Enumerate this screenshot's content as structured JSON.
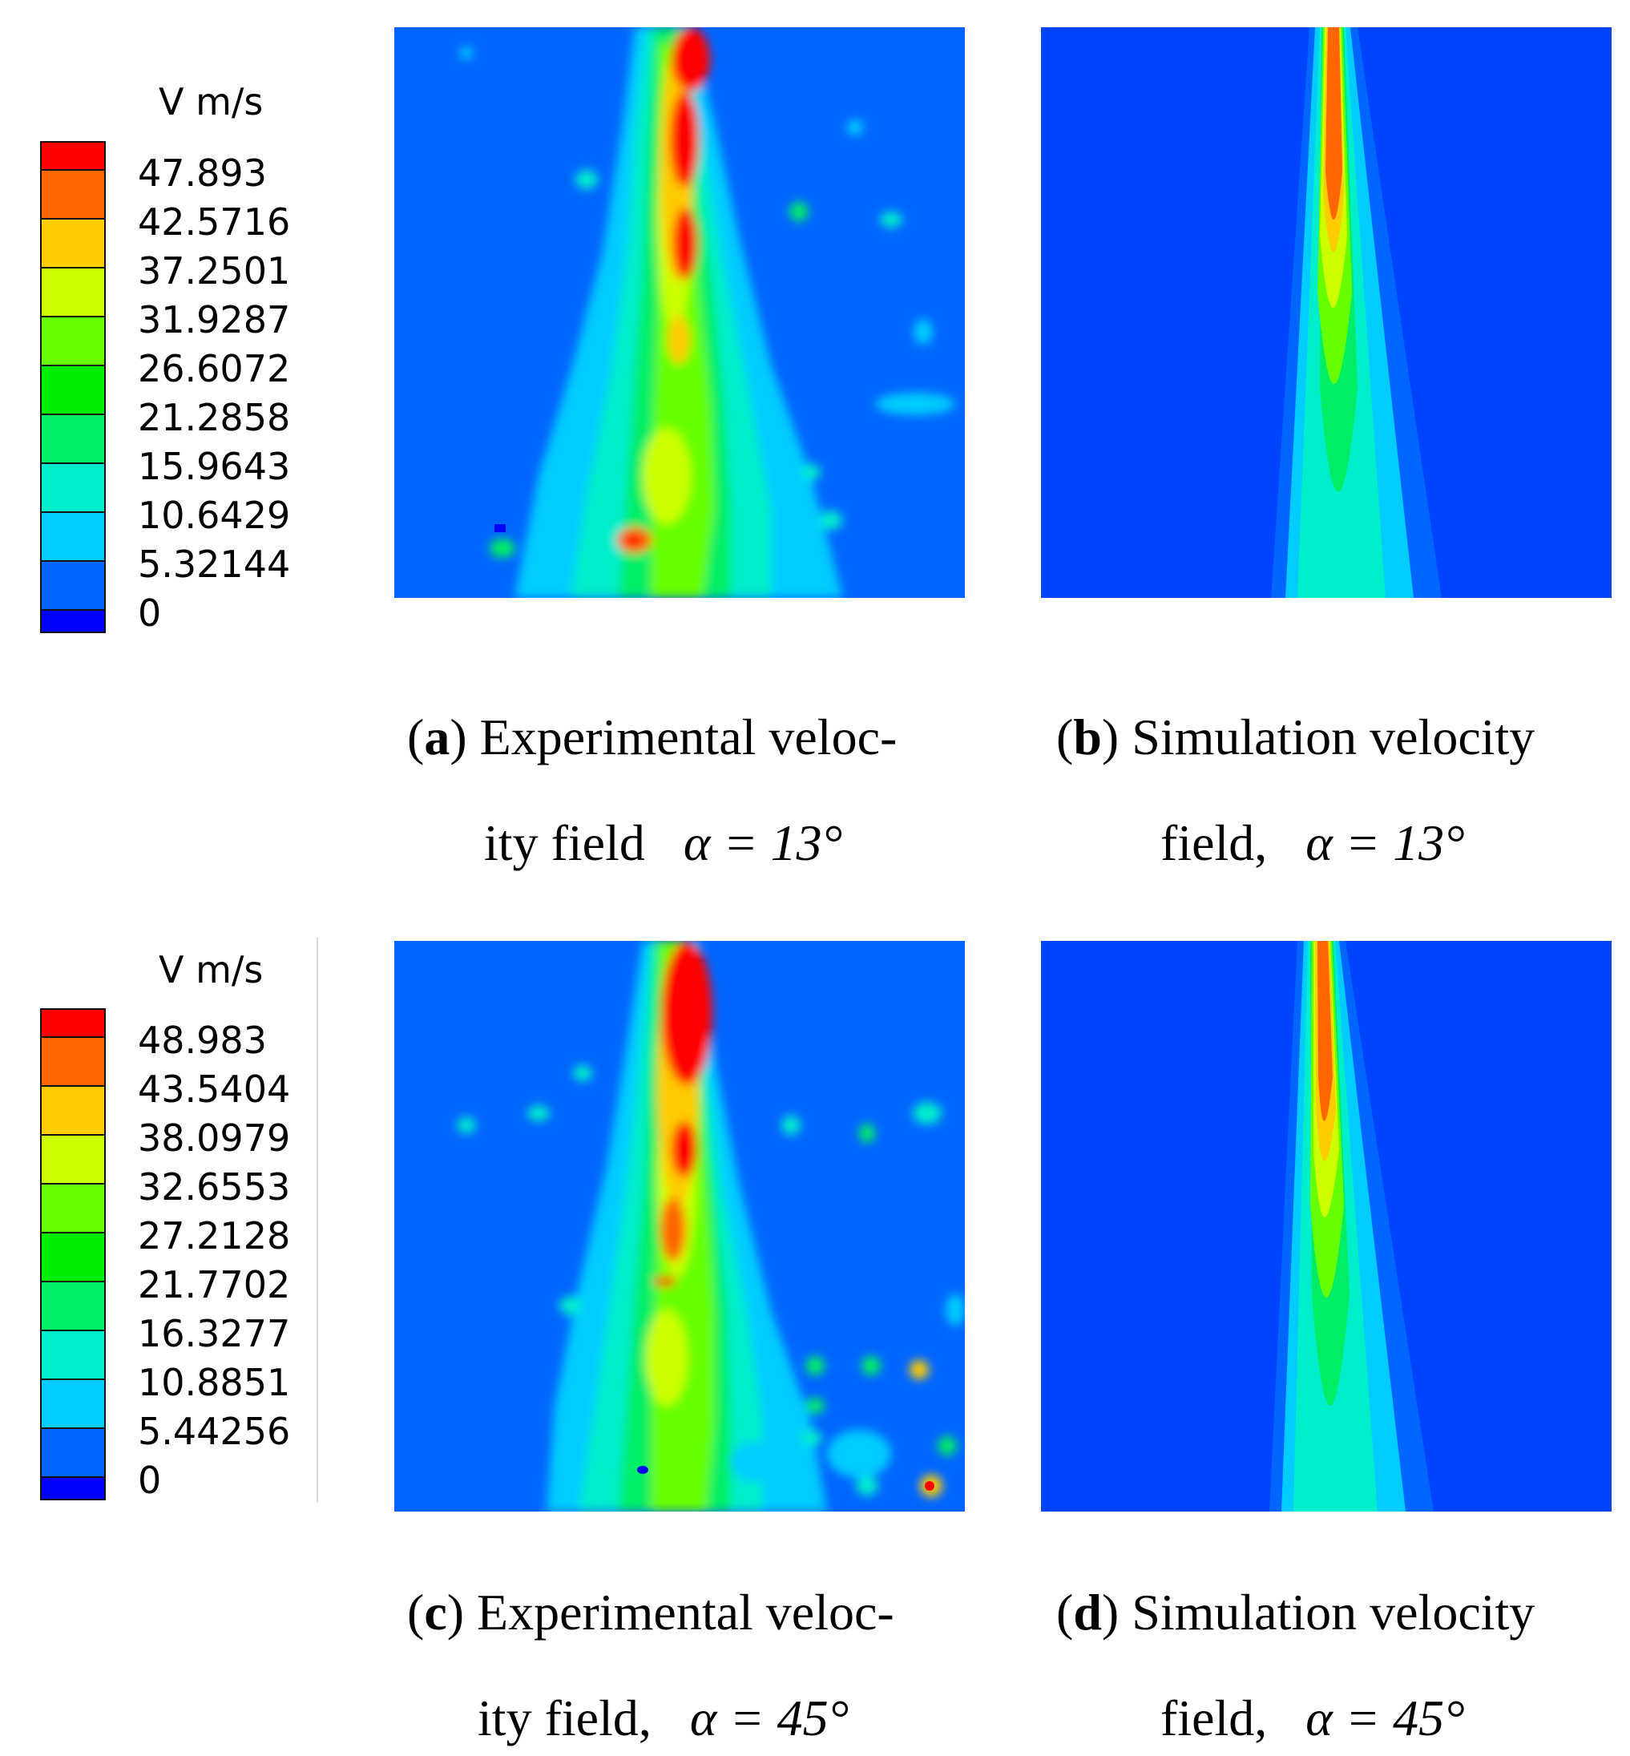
{
  "legends": [
    {
      "title": "V m/s",
      "labels": [
        "47.893",
        "42.5716",
        "37.2501",
        "31.9287",
        "26.6072",
        "21.2858",
        "15.9643",
        "10.6429",
        "5.32144",
        "0"
      ]
    },
    {
      "title": "V m/s",
      "labels": [
        "48.983",
        "43.5404",
        "38.0979",
        "32.6553",
        "27.2128",
        "21.7702",
        "16.3277",
        "10.8851",
        "5.44256",
        "0"
      ]
    }
  ],
  "colorscale": [
    "#ff0000",
    "#ff6600",
    "#ffcc00",
    "#ccff00",
    "#66ff00",
    "#00ee00",
    "#00ee66",
    "#00eecc",
    "#00ccff",
    "#0066ff",
    "#0000ff"
  ],
  "captions": {
    "a": {
      "letter": "a",
      "line1": "Experimental veloc-",
      "line2": "ity field",
      "alpha": "α = 13°"
    },
    "b": {
      "letter": "b",
      "line1": "Simulation velocity",
      "line2": "field,",
      "alpha": "α = 13°"
    },
    "c": {
      "letter": "c",
      "line1": "Experimental veloc-",
      "line2": "ity field,",
      "alpha": "α = 45°"
    },
    "d": {
      "letter": "d",
      "line1": "Simulation velocity",
      "line2": "field,",
      "alpha": "α = 45°"
    }
  }
}
